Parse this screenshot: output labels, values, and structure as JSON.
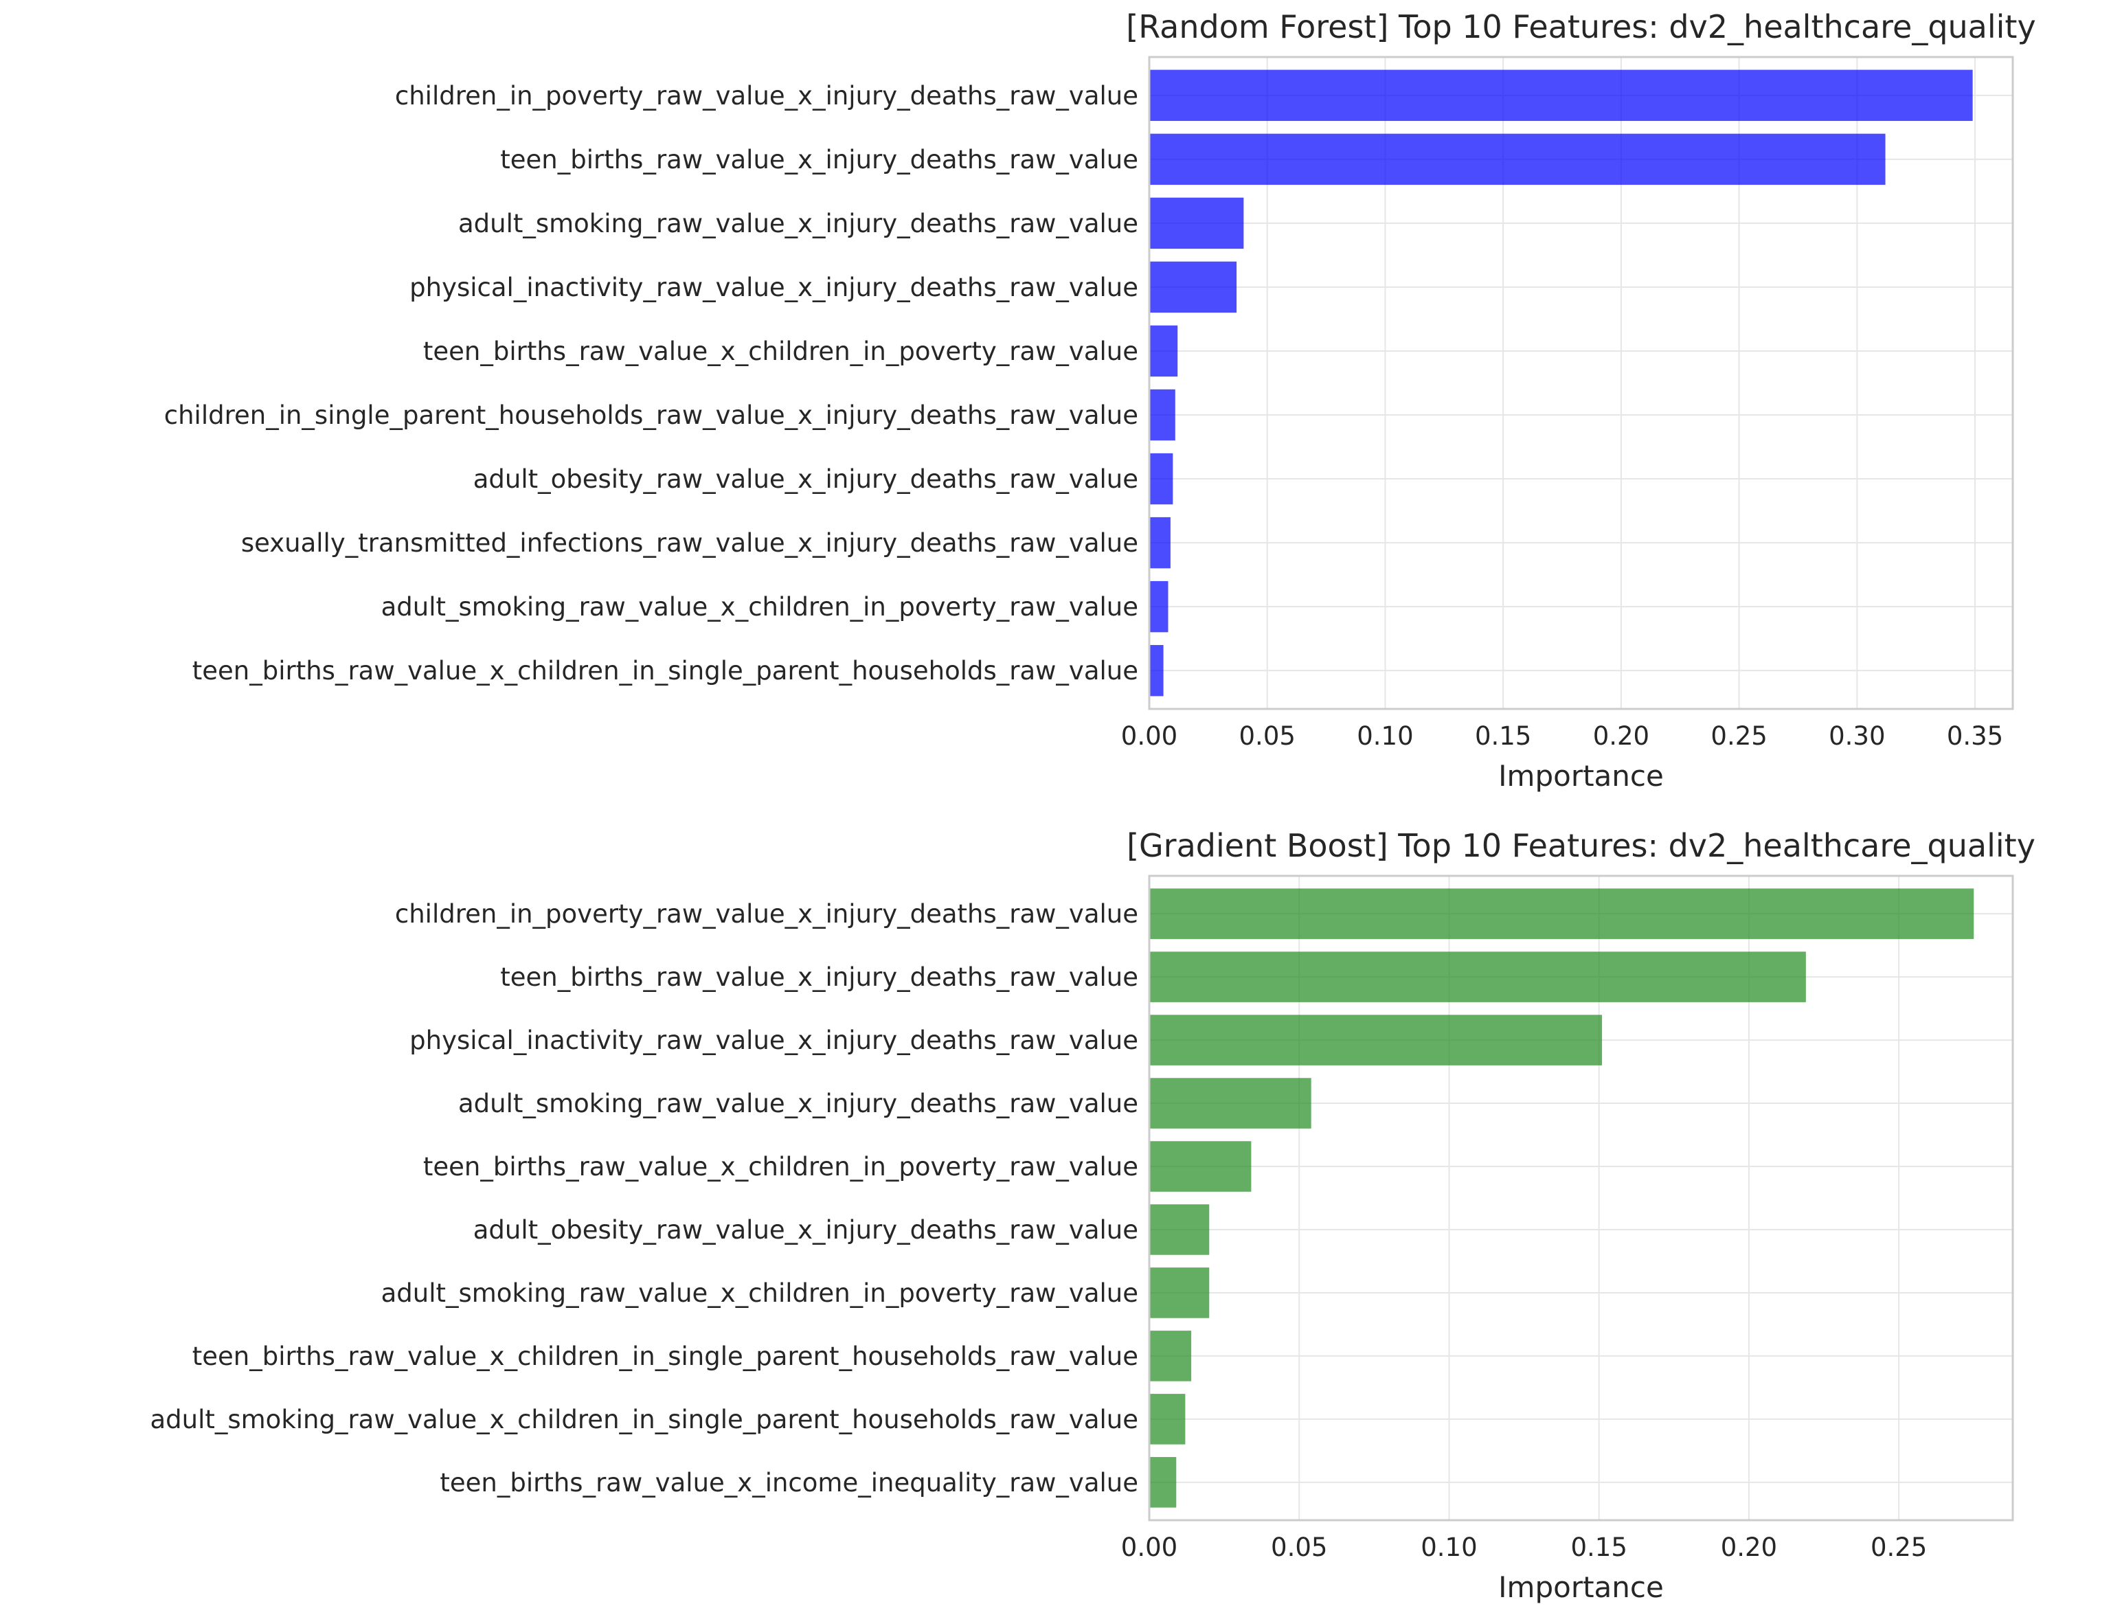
{
  "chart_data": [
    {
      "type": "bar",
      "orientation": "horizontal",
      "title": "[Random Forest] Top 10 Features: dv2_healthcare_quality",
      "xlabel": "Importance",
      "ylabel": "",
      "xlim": [
        0,
        0.366
      ],
      "xticks": [
        0,
        0.05,
        0.1,
        0.15,
        0.2,
        0.25,
        0.3,
        0.35
      ],
      "xtick_labels": [
        "0.00",
        "0.05",
        "0.10",
        "0.15",
        "0.20",
        "0.25",
        "0.30",
        "0.35"
      ],
      "grid": true,
      "color": "#0000ff",
      "categories": [
        "children_in_poverty_raw_value_x_injury_deaths_raw_value",
        "teen_births_raw_value_x_injury_deaths_raw_value",
        "adult_smoking_raw_value_x_injury_deaths_raw_value",
        "physical_inactivity_raw_value_x_injury_deaths_raw_value",
        "teen_births_raw_value_x_children_in_poverty_raw_value",
        "children_in_single_parent_households_raw_value_x_injury_deaths_raw_value",
        "adult_obesity_raw_value_x_injury_deaths_raw_value",
        "sexually_transmitted_infections_raw_value_x_injury_deaths_raw_value",
        "adult_smoking_raw_value_x_children_in_poverty_raw_value",
        "teen_births_raw_value_x_children_in_single_parent_households_raw_value"
      ],
      "values": [
        0.349,
        0.312,
        0.04,
        0.037,
        0.012,
        0.011,
        0.01,
        0.009,
        0.008,
        0.006
      ]
    },
    {
      "type": "bar",
      "orientation": "horizontal",
      "title": "[Gradient Boost] Top 10 Features: dv2_healthcare_quality",
      "xlabel": "Importance",
      "ylabel": "",
      "xlim": [
        0,
        0.288
      ],
      "xticks": [
        0,
        0.05,
        0.1,
        0.15,
        0.2,
        0.25
      ],
      "xtick_labels": [
        "0.00",
        "0.05",
        "0.10",
        "0.15",
        "0.20",
        "0.25"
      ],
      "grid": true,
      "color": "#228b22",
      "categories": [
        "children_in_poverty_raw_value_x_injury_deaths_raw_value",
        "teen_births_raw_value_x_injury_deaths_raw_value",
        "physical_inactivity_raw_value_x_injury_deaths_raw_value",
        "adult_smoking_raw_value_x_injury_deaths_raw_value",
        "teen_births_raw_value_x_children_in_poverty_raw_value",
        "adult_obesity_raw_value_x_injury_deaths_raw_value",
        "adult_smoking_raw_value_x_children_in_poverty_raw_value",
        "teen_births_raw_value_x_children_in_single_parent_households_raw_value",
        "adult_smoking_raw_value_x_children_in_single_parent_households_raw_value",
        "teen_births_raw_value_x_income_inequality_raw_value"
      ],
      "values": [
        0.275,
        0.219,
        0.151,
        0.054,
        0.034,
        0.02,
        0.02,
        0.014,
        0.012,
        0.009
      ]
    }
  ]
}
